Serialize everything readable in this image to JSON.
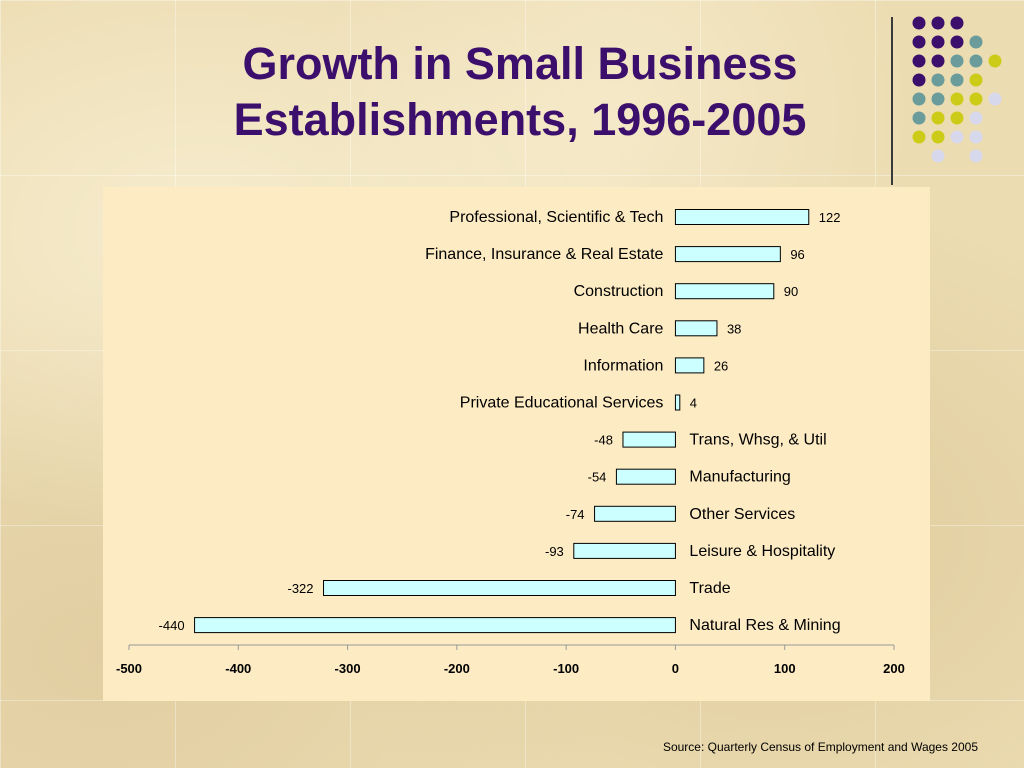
{
  "slide": {
    "title_line1": "Growth in Small Business",
    "title_line2": "Establishments, 1996-2005",
    "source": "Source: Quarterly Census of Employment and Wages 2005",
    "colors": {
      "title": "#3b0f6b",
      "bar_fill": "#ccffff",
      "bar_stroke": "#000000",
      "plot_background": "#fdebc4",
      "dots": [
        "#3b0f6b",
        "#6b9c9c",
        "#cccc18",
        "#d8d8ec"
      ]
    }
  },
  "chart_data": {
    "type": "bar",
    "orientation": "horizontal",
    "title": "",
    "xlabel": "",
    "ylabel": "",
    "xlim": [
      -500,
      200
    ],
    "x_ticks": [
      "-500",
      "-400",
      "-300",
      "-200",
      "-100",
      "0",
      "100",
      "200"
    ],
    "x_tick_values": [
      -500,
      -400,
      -300,
      -200,
      -100,
      0,
      100,
      200
    ],
    "categories": [
      "Professional, Scientific & Tech",
      "Finance, Insurance & Real Estate",
      "Construction",
      "Health Care",
      "Information",
      "Private Educational Services",
      "Trans, Whsg, & Util",
      "Manufacturing",
      "Other Services",
      "Leisure & Hospitality",
      "Trade",
      "Natural Res & Mining"
    ],
    "values": [
      122,
      96,
      90,
      38,
      26,
      4,
      -48,
      -54,
      -74,
      -93,
      -322,
      -440
    ],
    "data_labels": [
      "122",
      "96",
      "90",
      "38",
      "26",
      "4",
      "-48",
      "-54",
      "-74",
      "-93",
      "-322",
      "-440"
    ],
    "grid": false,
    "legend": "none"
  }
}
